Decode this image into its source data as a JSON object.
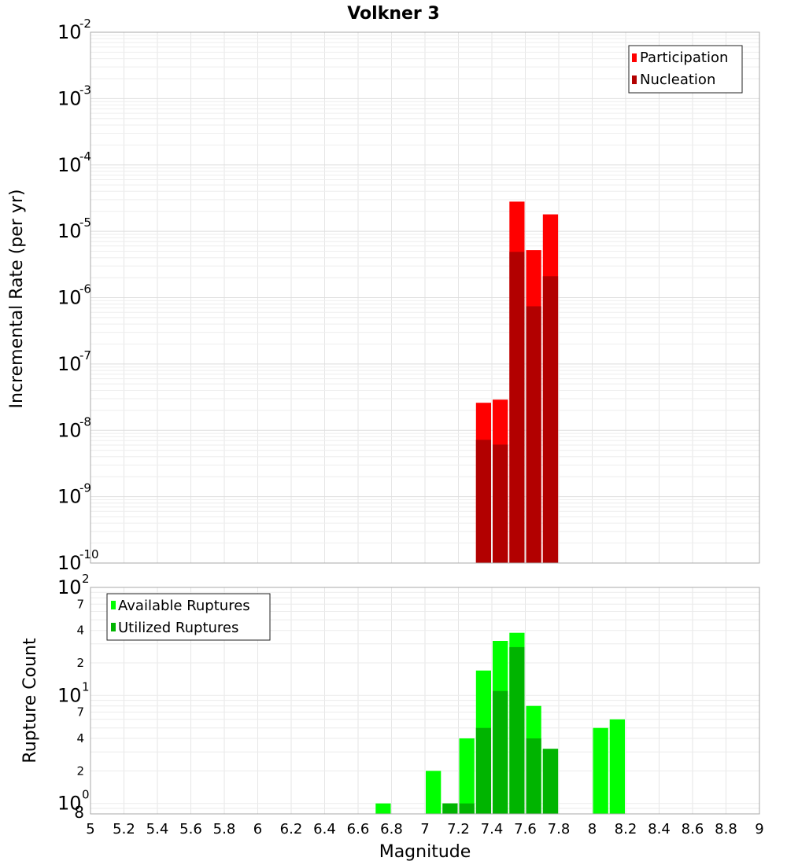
{
  "chart_data": [
    {
      "type": "bar",
      "title": "Volkner 3",
      "xlabel": "",
      "ylabel": "Incremental Rate (per yr)",
      "yscale": "log",
      "ylim": [
        1e-10,
        0.01
      ],
      "xlim": [
        5,
        9
      ],
      "grid": true,
      "legend_position": "top-right",
      "y_ticks": [
        {
          "exp": -2
        },
        {
          "exp": -3
        },
        {
          "exp": -4
        },
        {
          "exp": -5
        },
        {
          "exp": -6
        },
        {
          "exp": -7
        },
        {
          "exp": -8
        },
        {
          "exp": -9
        },
        {
          "exp": -10
        }
      ],
      "series": [
        {
          "name": "Participation",
          "color": "#ff0000",
          "points": [
            {
              "x": 7.35,
              "y": 2.6e-08
            },
            {
              "x": 7.45,
              "y": 2.9e-08
            },
            {
              "x": 7.55,
              "y": 2.8e-05
            },
            {
              "x": 7.65,
              "y": 5.2e-06
            },
            {
              "x": 7.75,
              "y": 1.8e-05
            }
          ]
        },
        {
          "name": "Nucleation",
          "color": "#b20000",
          "points": [
            {
              "x": 7.35,
              "y": 7.2e-09
            },
            {
              "x": 7.45,
              "y": 6.1e-09
            },
            {
              "x": 7.55,
              "y": 4.9e-06
            },
            {
              "x": 7.65,
              "y": 7.4e-07
            },
            {
              "x": 7.75,
              "y": 2.1e-06
            }
          ]
        }
      ]
    },
    {
      "type": "bar",
      "title": "",
      "xlabel": "Magnitude",
      "ylabel": "Rupture Count",
      "yscale": "log",
      "ylim": [
        0.8,
        100
      ],
      "xlim": [
        5,
        9
      ],
      "grid": true,
      "legend_position": "top-left",
      "x_ticks": [
        "5",
        "5.2",
        "5.4",
        "5.6",
        "5.8",
        "6",
        "6.2",
        "6.4",
        "6.6",
        "6.8",
        "7",
        "7.2",
        "7.4",
        "7.6",
        "7.8",
        "8",
        "8.2",
        "8.4",
        "8.6",
        "8.8",
        "9"
      ],
      "y_ticks": [
        {
          "value": 100,
          "base": "10",
          "exp": "2"
        },
        {
          "value": 70,
          "minor": "7"
        },
        {
          "value": 40,
          "minor": "4"
        },
        {
          "value": 20,
          "minor": "2"
        },
        {
          "value": 10,
          "base": "10",
          "exp": "1"
        },
        {
          "value": 7,
          "minor": "7"
        },
        {
          "value": 4,
          "minor": "4"
        },
        {
          "value": 2,
          "minor": "2"
        },
        {
          "value": 1,
          "base": "10",
          "exp": "0"
        },
        {
          "value": 0.8,
          "minor": "8"
        }
      ],
      "series": [
        {
          "name": "Available Ruptures",
          "color": "#00ff00",
          "points": [
            {
              "x": 6.75,
              "y": 1
            },
            {
              "x": 7.05,
              "y": 2
            },
            {
              "x": 7.15,
              "y": 1
            },
            {
              "x": 7.25,
              "y": 4
            },
            {
              "x": 7.35,
              "y": 17
            },
            {
              "x": 7.45,
              "y": 32
            },
            {
              "x": 7.55,
              "y": 38
            },
            {
              "x": 7.65,
              "y": 8
            },
            {
              "x": 7.75,
              "y": 3.2
            },
            {
              "x": 8.05,
              "y": 5
            },
            {
              "x": 8.15,
              "y": 6
            }
          ]
        },
        {
          "name": "Utilized Ruptures",
          "color": "#00b400",
          "points": [
            {
              "x": 7.15,
              "y": 1
            },
            {
              "x": 7.25,
              "y": 1
            },
            {
              "x": 7.35,
              "y": 5
            },
            {
              "x": 7.45,
              "y": 11
            },
            {
              "x": 7.55,
              "y": 28
            },
            {
              "x": 7.65,
              "y": 4
            },
            {
              "x": 7.75,
              "y": 3.2
            }
          ]
        }
      ]
    }
  ]
}
